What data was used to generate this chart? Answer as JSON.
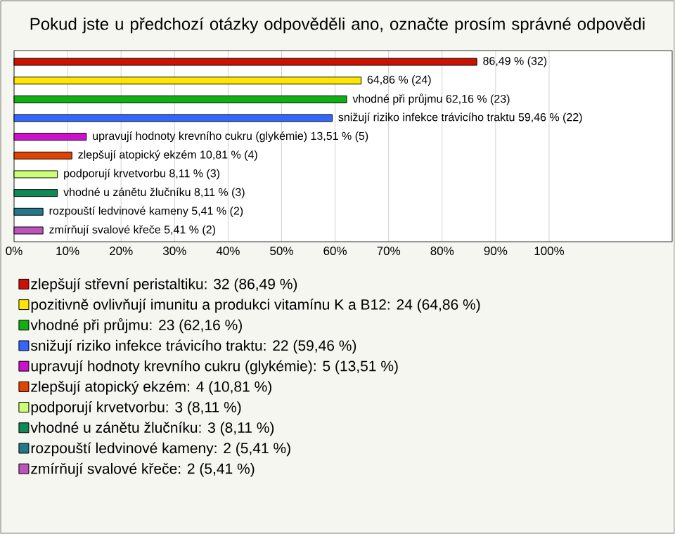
{
  "chart_data": {
    "type": "bar",
    "orientation": "horizontal",
    "title": "Pokud jste u předchozí otázky odpověděli ano, označte prosím správné odpovědi",
    "categories": [
      null,
      null,
      null,
      null,
      null,
      null,
      null,
      null,
      null,
      null
    ],
    "series": [
      {
        "name": "zlepšují střevní peristaltiku: 32 (86,49 %)",
        "color": "#cc1100",
        "values": [
          86.49,
          null,
          null,
          null,
          null,
          null,
          null,
          null,
          null,
          null
        ],
        "value_labels": [
          "86,49 % (32)",
          null,
          null,
          null,
          null,
          null,
          null,
          null,
          null,
          null
        ]
      },
      {
        "name": "pozitivně ovlivňují imunitu a produkci vitamínu K a B12: 24 (64,86 %)",
        "color": "#ffe600",
        "values": [
          null,
          64.86,
          null,
          null,
          null,
          null,
          null,
          null,
          null,
          null
        ],
        "value_labels": [
          null,
          "64,86 % (24)",
          null,
          null,
          null,
          null,
          null,
          null,
          null,
          null
        ]
      },
      {
        "name": "vhodné při průjmu: 23 (62,16 %)",
        "color": "#11b011",
        "values": [
          null,
          null,
          62.16,
          null,
          null,
          null,
          null,
          null,
          null,
          null
        ],
        "value_labels": [
          null,
          null,
          "vhodné při průjmu 62,16 % (23)",
          null,
          null,
          null,
          null,
          null,
          null,
          null
        ]
      },
      {
        "name": "snižují riziko infekce trávicího traktu: 22 (59,46 %)",
        "color": "#3366ff",
        "values": [
          null,
          null,
          null,
          59.46,
          null,
          null,
          null,
          null,
          null,
          null
        ],
        "value_labels": [
          null,
          null,
          null,
          "snižují riziko infekce trávicího traktu 59,46 % (22)",
          null,
          null,
          null,
          null,
          null,
          null
        ]
      },
      {
        "name": "upravují hodnoty krevního cukru (glykémie): 5 (13,51 %)",
        "color": "#cc11cc",
        "values": [
          null,
          null,
          null,
          null,
          13.51,
          null,
          null,
          null,
          null,
          null
        ],
        "value_labels": [
          null,
          null,
          null,
          null,
          "upravují hodnoty krevního cukru (glykémie) 13,51 % (5)",
          null,
          null,
          null,
          null,
          null
        ]
      },
      {
        "name": "zlepšují atopický ekzém: 4 (10,81 %)",
        "color": "#e04400",
        "values": [
          null,
          null,
          null,
          null,
          null,
          10.81,
          null,
          null,
          null,
          null
        ],
        "value_labels": [
          null,
          null,
          null,
          null,
          null,
          "zlepšují atopický ekzém 10,81 % (4)",
          null,
          null,
          null,
          null
        ]
      },
      {
        "name": "podporují krvetvorbu: 3 (8,11 %)",
        "color": "#ccff77",
        "values": [
          null,
          null,
          null,
          null,
          null,
          null,
          8.11,
          null,
          null,
          null
        ],
        "value_labels": [
          null,
          null,
          null,
          null,
          null,
          null,
          "podporují krvetvorbu 8,11 % (3)",
          null,
          null,
          null
        ]
      },
      {
        "name": "vhodné u zánětu žlučníku: 3 (8,11 %)",
        "color": "#118855",
        "values": [
          null,
          null,
          null,
          null,
          null,
          null,
          null,
          8.11,
          null,
          null
        ],
        "value_labels": [
          null,
          null,
          null,
          null,
          null,
          null,
          null,
          "vhodné u zánětu žlučníku 8,11 % (3)",
          null,
          null
        ]
      },
      {
        "name": "rozpouští ledvinové kameny: 2 (5,41 %)",
        "color": "#227788",
        "values": [
          null,
          null,
          null,
          null,
          null,
          null,
          null,
          null,
          5.41,
          null
        ],
        "value_labels": [
          null,
          null,
          null,
          null,
          null,
          null,
          null,
          null,
          "rozpouští ledvinové kameny 5,41 % (2)",
          null
        ]
      },
      {
        "name": "zmírňují svalové křeče: 2 (5,41 %)",
        "color": "#bb55bb",
        "values": [
          null,
          null,
          null,
          null,
          null,
          null,
          null,
          null,
          null,
          5.41
        ],
        "value_labels": [
          null,
          null,
          null,
          null,
          null,
          null,
          null,
          null,
          null,
          "zmírňují svalové křeče 5,41 % (2)"
        ]
      }
    ],
    "xlim": [
      0,
      123
    ],
    "xticks": [
      {
        "value": 0,
        "label": "0%"
      },
      {
        "value": 10,
        "label": "10%"
      },
      {
        "value": 20,
        "label": "20%"
      },
      {
        "value": 30,
        "label": "30%"
      },
      {
        "value": 40,
        "label": "40%"
      },
      {
        "value": 50,
        "label": "50%"
      },
      {
        "value": 60,
        "label": "60%"
      },
      {
        "value": 70,
        "label": "70%"
      },
      {
        "value": 80,
        "label": "80%"
      },
      {
        "value": 90,
        "label": "90%"
      },
      {
        "value": 100,
        "label": "100%"
      }
    ],
    "grid": "x",
    "legend": "bottom",
    "tick_labels": "x"
  }
}
